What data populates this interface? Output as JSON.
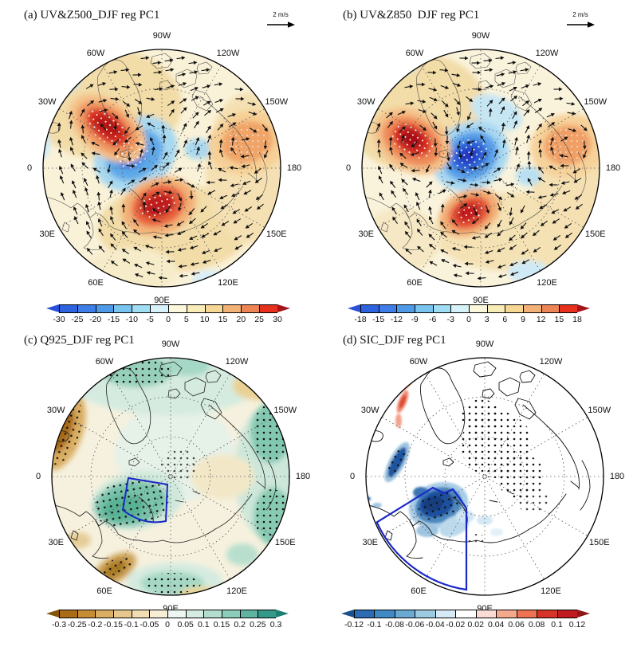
{
  "figure": {
    "background": "#ffffff",
    "panels": [
      {
        "id": "a",
        "title": "(a) UV&Z500_DJF reg PC1",
        "vector_ref": "2 m/s",
        "lon_labels": [
          "90W",
          "120W",
          "150W",
          "180",
          "150E",
          "120E",
          "90E",
          "60E",
          "30E",
          "0",
          "30W",
          "60W"
        ],
        "colorbar": {
          "ticks": [
            "-30",
            "-25",
            "-20",
            "-15",
            "-10",
            "-5",
            "0",
            "5",
            "10",
            "15",
            "20",
            "25",
            "30"
          ],
          "left_arrow": "#2b50d8",
          "right_arrow": "#a5131b",
          "colors": [
            "#2e63e0",
            "#3f7ee8",
            "#4f9ae8",
            "#79c4ee",
            "#a0dcf2",
            "#d8f2fa",
            "#fbf8dc",
            "#f8ecb8",
            "#f7d794",
            "#f2b177",
            "#ec8456",
            "#e8301f"
          ]
        }
      },
      {
        "id": "b",
        "title": "(b) UV&Z850  DJF reg PC1",
        "vector_ref": "2 m/s",
        "lon_labels": [
          "90W",
          "120W",
          "150W",
          "180",
          "150E",
          "120E",
          "90E",
          "60E",
          "30E",
          "0",
          "30W",
          "60W"
        ],
        "colorbar": {
          "ticks": [
            "-18",
            "-15",
            "-12",
            "-9",
            "-6",
            "-3",
            "0",
            "3",
            "6",
            "9",
            "12",
            "15",
            "18"
          ],
          "left_arrow": "#2b50d8",
          "right_arrow": "#a5131b",
          "colors": [
            "#2e63e0",
            "#3f7ee8",
            "#4f9ae8",
            "#79c4ee",
            "#a0dcf2",
            "#d8f2fa",
            "#fbf8dc",
            "#f8ecb8",
            "#f7d794",
            "#f2b177",
            "#ec8456",
            "#e8301f"
          ]
        }
      },
      {
        "id": "c",
        "title": "(c) Q925_DJF reg PC1",
        "lon_labels": [
          "90W",
          "120W",
          "150W",
          "180",
          "150E",
          "120E",
          "90E",
          "60E",
          "30E",
          "0",
          "30W",
          "60W"
        ],
        "colorbar": {
          "ticks": [
            "-0.3",
            "-0.25",
            "-0.2",
            "-0.15",
            "-0.1",
            "-0.05",
            "0",
            "0.05",
            "0.1",
            "0.15",
            "0.2",
            "0.25",
            "0.3"
          ],
          "left_arrow": "#845408",
          "right_arrow": "#1b7f72",
          "colors": [
            "#aa6c17",
            "#c68d35",
            "#d9ae62",
            "#e6c88e",
            "#f0ddb4",
            "#f8eed6",
            "#eef6f2",
            "#d6ece2",
            "#b2dcce",
            "#8cccba",
            "#5eb3a1",
            "#35998a"
          ]
        }
      },
      {
        "id": "d",
        "title": "(d) SIC_DJF reg PC1",
        "lon_labels": [
          "90W",
          "120W",
          "150W",
          "180",
          "150E",
          "120E",
          "90E",
          "60E",
          "30E",
          "0",
          "30W",
          "60W"
        ],
        "colorbar": {
          "ticks": [
            "-0.12",
            "-0.1",
            "-0.08",
            "-0.06",
            "-0.04",
            "-0.02",
            "0.02",
            "0.04",
            "0.06",
            "0.08",
            "0.1",
            "0.12"
          ],
          "left_arrow": "#17518f",
          "right_arrow": "#8f1616",
          "colors": [
            "#2b6cb5",
            "#3f8ac4",
            "#6aaad2",
            "#9ccbe1",
            "#d5eaf4",
            "#ffffff",
            "#fadcd5",
            "#f4a98c",
            "#ed7352",
            "#d63426",
            "#c01c20"
          ]
        }
      }
    ]
  },
  "chart_data": [
    {
      "type": "heatmap",
      "panel": "a",
      "title": "(a) UV&Z500_DJF reg PC1",
      "projection": "north polar stereographic",
      "variable": "DJF Z500 regressed on PC1, with UV wind vector overlay",
      "vector_reference": "2 m/s",
      "colorbar_range": [
        -30,
        30
      ],
      "colorbar_step": 5,
      "anomaly_centers": [
        {
          "location": "central Arctic near Greenland/pole",
          "sign": "negative",
          "value": -30
        },
        {
          "location": "North Atlantic mid-latitudes (30W-60W)",
          "sign": "positive",
          "value": 30
        },
        {
          "location": "central Siberia / Eurasia",
          "sign": "positive",
          "value": 30
        },
        {
          "location": "North Pacific (150W-180)",
          "sign": "positive",
          "value": 15
        }
      ],
      "overlays": [
        "dense black wind-vector arrows",
        "white stippling over significant centers"
      ]
    },
    {
      "type": "heatmap",
      "panel": "b",
      "title": "(b) UV&Z850  DJF reg PC1",
      "projection": "north polar stereographic",
      "variable": "DJF Z850 regressed on PC1, with UV wind vector overlay",
      "vector_reference": "2 m/s",
      "colorbar_range": [
        -18,
        18
      ],
      "colorbar_step": 3,
      "anomaly_centers": [
        {
          "location": "central Arctic near pole",
          "sign": "negative",
          "value": -18
        },
        {
          "location": "North Atlantic (30W-60W)",
          "sign": "positive",
          "value": 18
        },
        {
          "location": "Eurasia south of Barents Sea",
          "sign": "positive",
          "value": 12
        },
        {
          "location": "North Pacific (150W-180)",
          "sign": "positive",
          "value": 9
        }
      ],
      "overlays": [
        "dense black wind-vector arrows",
        "white stippling over significant centers"
      ]
    },
    {
      "type": "heatmap",
      "panel": "c",
      "title": "(c) Q925_DJF reg PC1",
      "projection": "north polar stereographic",
      "variable": "DJF 925-hPa specific humidity regressed on PC1",
      "colorbar_range": [
        -0.3,
        0.3
      ],
      "colorbar_step": 0.05,
      "anomaly_centers": [
        {
          "location": "North Atlantic into Arctic (top band)",
          "sign": "positive",
          "value": 0.2
        },
        {
          "location": "Barents-Kara Seas / Scandinavia-Arctic",
          "sign": "positive",
          "value": 0.25
        },
        {
          "location": "North Pacific band (150W-150E)",
          "sign": "positive",
          "value": 0.25
        },
        {
          "location": "near 90E coast",
          "sign": "positive",
          "value": 0.2
        },
        {
          "location": "subtropical North Atlantic near 30W edge",
          "sign": "negative",
          "value": -0.3
        },
        {
          "location": "eastern Europe near 60E edge",
          "sign": "negative",
          "value": -0.2
        }
      ],
      "overlays": [
        "black stippling over significant areas",
        "blue box over Barents-Kara Seas"
      ]
    },
    {
      "type": "heatmap",
      "panel": "d",
      "title": "(d) SIC_DJF reg PC1",
      "projection": "north polar stereographic",
      "variable": "DJF sea-ice concentration regressed on PC1",
      "colorbar_range": [
        -0.12,
        0.12
      ],
      "colorbar_step": 0.02,
      "anomaly_centers": [
        {
          "location": "Barents Sea (inside blue box)",
          "sign": "negative",
          "value": -0.12
        },
        {
          "location": "Greenland Sea",
          "sign": "negative",
          "value": -0.1
        },
        {
          "location": "Davis Strait / Baffin Bay coast streaks",
          "sign": "positive",
          "value": 0.08
        },
        {
          "location": "near Bering Strait (180)",
          "sign": "positive",
          "value": 0.02
        }
      ],
      "overlays": [
        "black stippling over central Arctic",
        "blue sector box from 30E to 90E (Barents-Kara region)"
      ]
    }
  ]
}
